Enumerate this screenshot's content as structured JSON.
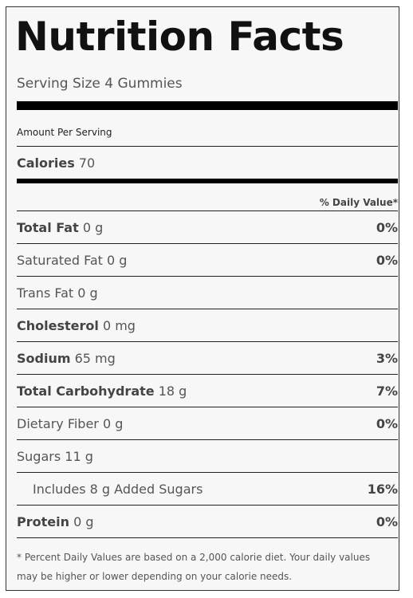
{
  "title": "Nutrition Facts",
  "serving_size": "Serving Size 4 Gummies",
  "amount_per_serving": "Amount Per Serving",
  "calories": {
    "label": "Calories",
    "value": "70"
  },
  "daily_value_header": "% Daily Value*",
  "nutrients": [
    {
      "name": "Total Fat",
      "amount": "0 g",
      "dv": "0%",
      "bold": true
    },
    {
      "name": "Saturated Fat",
      "amount": "0 g",
      "dv": "0%",
      "bold": false
    },
    {
      "name": "Trans Fat",
      "amount": "0 g",
      "dv": "",
      "bold": false
    },
    {
      "name": "Cholesterol",
      "amount": "0 mg",
      "dv": "",
      "bold": true
    },
    {
      "name": "Sodium",
      "amount": "65 mg",
      "dv": "3%",
      "bold": true
    },
    {
      "name": "Total Carbohydrate",
      "amount": "18 g",
      "dv": "7%",
      "bold": true
    },
    {
      "name": "Dietary Fiber",
      "amount": "0 g",
      "dv": "0%",
      "bold": false
    },
    {
      "name": "Sugars",
      "amount": "11 g",
      "dv": "",
      "bold": false
    },
    {
      "name": "Includes 8 g Added Sugars",
      "amount": "",
      "dv": "16%",
      "bold": false,
      "indent": true
    },
    {
      "name": "Protein",
      "amount": "0 g",
      "dv": "0%",
      "bold": true
    }
  ],
  "footnote": {
    "line1": "* Percent Daily Values are based on a 2,000 calorie diet. Your daily values",
    "line2": "may be higher or lower depending on your calorie needs."
  }
}
